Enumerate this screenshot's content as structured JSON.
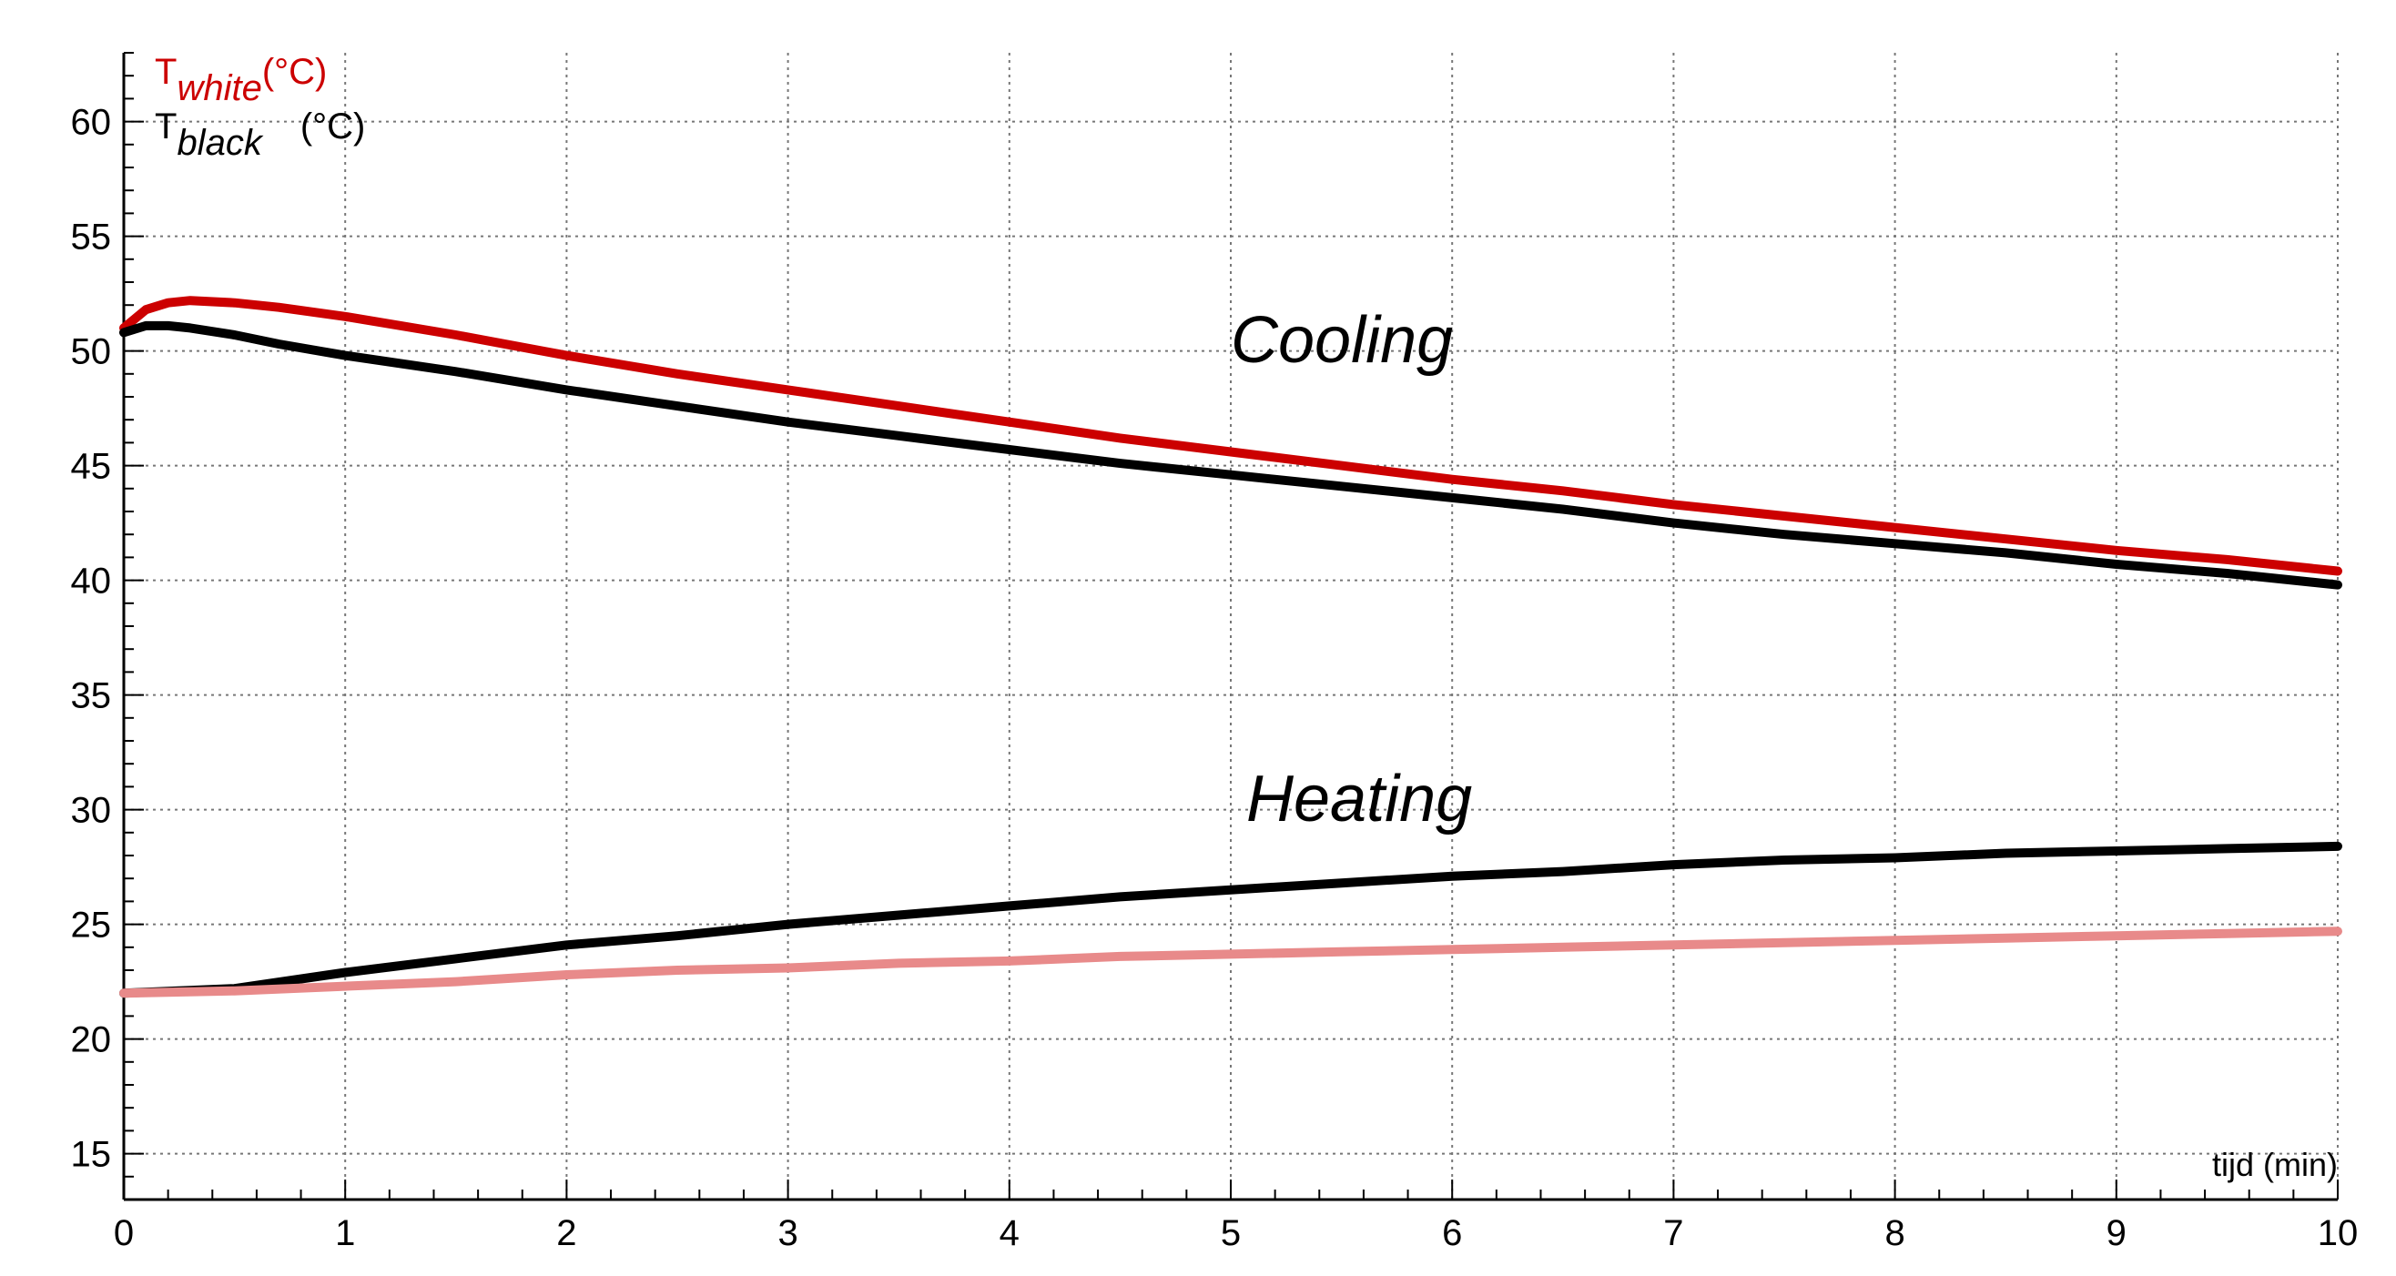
{
  "chart_data": {
    "type": "line",
    "xlabel": "tijd (min)",
    "xlim": [
      0,
      10
    ],
    "ylim": [
      13,
      63
    ],
    "xticks": [
      0,
      1,
      2,
      3,
      4,
      5,
      6,
      7,
      8,
      9,
      10
    ],
    "yticks": [
      15,
      20,
      25,
      30,
      35,
      40,
      45,
      50,
      55,
      60
    ],
    "grid": true,
    "legend": {
      "placement": "top-left",
      "entries": [
        {
          "base": "T",
          "sub": "white",
          "unit": "(°C)",
          "color": "#cc0000"
        },
        {
          "base": "T",
          "sub": "black",
          "unit": "(°C)",
          "color": "#000000"
        }
      ]
    },
    "annotations": [
      {
        "text": "Cooling",
        "x": 5.0,
        "y": 49.5
      },
      {
        "text": "Heating",
        "x": 5.07,
        "y": 29.5
      }
    ],
    "series": [
      {
        "group": "Cooling",
        "color": "#cc0000",
        "x": [
          0,
          0.1,
          0.2,
          0.3,
          0.5,
          0.7,
          1,
          1.5,
          2,
          2.5,
          3,
          3.5,
          4,
          4.5,
          5,
          5.5,
          6,
          6.5,
          7,
          7.5,
          8,
          8.5,
          9,
          9.5,
          10
        ],
        "y": [
          51.0,
          51.8,
          52.1,
          52.2,
          52.1,
          51.9,
          51.5,
          50.7,
          49.8,
          49.0,
          48.3,
          47.6,
          46.9,
          46.2,
          45.6,
          45.0,
          44.4,
          43.9,
          43.3,
          42.8,
          42.3,
          41.8,
          41.3,
          40.9,
          40.4
        ]
      },
      {
        "group": "Cooling",
        "color": "#000000",
        "x": [
          0,
          0.1,
          0.2,
          0.3,
          0.5,
          0.7,
          1,
          1.5,
          2,
          2.5,
          3,
          3.5,
          4,
          4.5,
          5,
          5.5,
          6,
          6.5,
          7,
          7.5,
          8,
          8.5,
          9,
          9.5,
          10
        ],
        "y": [
          50.8,
          51.1,
          51.1,
          51.0,
          50.7,
          50.3,
          49.8,
          49.1,
          48.3,
          47.6,
          46.9,
          46.3,
          45.7,
          45.1,
          44.6,
          44.1,
          43.6,
          43.1,
          42.5,
          42.0,
          41.6,
          41.2,
          40.7,
          40.3,
          39.8
        ]
      },
      {
        "group": "Heating",
        "color": "#000000",
        "x": [
          0,
          0.5,
          1,
          1.5,
          2,
          2.5,
          3,
          3.5,
          4,
          4.5,
          5,
          5.5,
          6,
          6.5,
          7,
          7.5,
          8,
          8.5,
          9,
          9.5,
          10
        ],
        "y": [
          22.0,
          22.2,
          22.9,
          23.5,
          24.1,
          24.5,
          25.0,
          25.4,
          25.8,
          26.2,
          26.5,
          26.8,
          27.1,
          27.3,
          27.6,
          27.8,
          27.9,
          28.1,
          28.2,
          28.3,
          28.4
        ]
      },
      {
        "group": "Heating",
        "color": "#e88a8a",
        "x": [
          0,
          0.5,
          1,
          1.5,
          2,
          2.5,
          3,
          3.5,
          4,
          4.5,
          5,
          5.5,
          6,
          6.5,
          7,
          7.5,
          8,
          8.5,
          9,
          9.5,
          10
        ],
        "y": [
          22.0,
          22.1,
          22.3,
          22.5,
          22.8,
          23.0,
          23.1,
          23.3,
          23.4,
          23.6,
          23.7,
          23.8,
          23.9,
          24.0,
          24.1,
          24.2,
          24.3,
          24.4,
          24.5,
          24.6,
          24.7
        ]
      }
    ]
  }
}
